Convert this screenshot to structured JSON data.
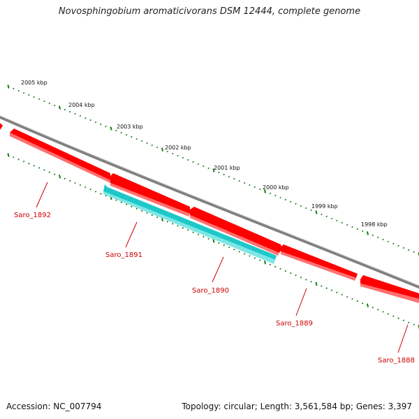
{
  "title": "Novosphingobium aromaticivorans DSM 12444, complete genome",
  "footer": {
    "accession": "Accession: NC_007794",
    "summary": "Topology: circular; Length: 3,561,584 bp; Genes: 3,397"
  },
  "scale_labels": [
    "2005 kbp",
    "2004 kbp",
    "2003 kbp",
    "2002 kbp",
    "2001 kbp",
    "2000 kbp",
    "1999 kbp",
    "1998 kbp"
  ],
  "genes": [
    {
      "label": "Saro_1892",
      "color": "#ff0000"
    },
    {
      "label": "Saro_1891",
      "color": "#1ec8c8"
    },
    {
      "label": "Saro_1890",
      "color": "#ff0000"
    },
    {
      "label": "Saro_1889",
      "color": "#ff0000"
    },
    {
      "label": "Saro_1888",
      "color": "#ff0000"
    }
  ],
  "colors": {
    "backbone": "#808080",
    "tick": "#1a7a1a",
    "gene_forward": "#ff0000",
    "gene_highlight": "#1ec8c8",
    "label": "#cc0000"
  }
}
